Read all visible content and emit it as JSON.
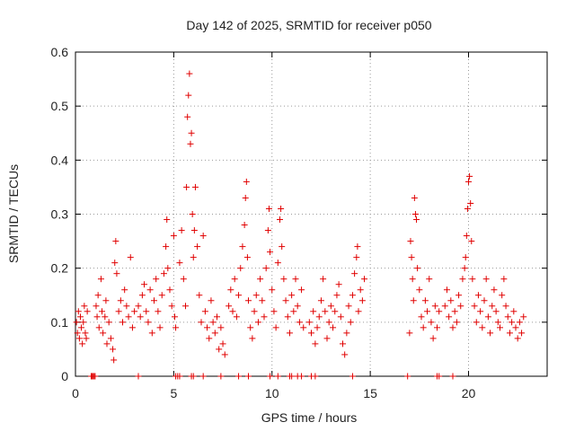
{
  "chart_data": {
    "type": "scatter",
    "title": "Day 142 of 2025, SRMTID for receiver p050",
    "xlabel": "GPS time / hours",
    "ylabel": "SRMTID / TECUs",
    "xlim": [
      0,
      24
    ],
    "ylim": [
      0,
      0.6
    ],
    "xticks": [
      0,
      5,
      10,
      15,
      20
    ],
    "yticks": [
      0,
      0.1,
      0.2,
      0.3,
      0.4,
      0.5,
      0.6
    ],
    "x_tick_labels": [
      "0",
      "5",
      "10",
      "15",
      "20"
    ],
    "y_tick_labels": [
      "0",
      "0.1",
      "0.2",
      "0.3",
      "0.4",
      "0.5",
      "0.6"
    ],
    "grid": true,
    "marker": "+",
    "color": "#e00000",
    "series": [
      {
        "name": "SRMTID",
        "points": [
          [
            0.05,
            0.1
          ],
          [
            0.1,
            0.08
          ],
          [
            0.15,
            0.12
          ],
          [
            0.2,
            0.07
          ],
          [
            0.25,
            0.11
          ],
          [
            0.3,
            0.09
          ],
          [
            0.35,
            0.06
          ],
          [
            0.4,
            0.1
          ],
          [
            0.45,
            0.13
          ],
          [
            0.5,
            0.08
          ],
          [
            0.55,
            0.07
          ],
          [
            0.6,
            0.12
          ],
          [
            1.05,
            0.13
          ],
          [
            1.1,
            0.11
          ],
          [
            1.15,
            0.15
          ],
          [
            1.2,
            0.09
          ],
          [
            1.3,
            0.18
          ],
          [
            1.35,
            0.12
          ],
          [
            1.4,
            0.08
          ],
          [
            1.5,
            0.11
          ],
          [
            1.55,
            0.14
          ],
          [
            1.6,
            0.06
          ],
          [
            1.7,
            0.1
          ],
          [
            1.8,
            0.07
          ],
          [
            1.9,
            0.05
          ],
          [
            1.95,
            0.03
          ],
          [
            2.0,
            0.21
          ],
          [
            2.05,
            0.25
          ],
          [
            2.1,
            0.19
          ],
          [
            2.2,
            0.12
          ],
          [
            2.3,
            0.14
          ],
          [
            2.4,
            0.1
          ],
          [
            2.5,
            0.16
          ],
          [
            2.6,
            0.13
          ],
          [
            2.7,
            0.11
          ],
          [
            2.8,
            0.22
          ],
          [
            2.9,
            0.09
          ],
          [
            3.0,
            0.12
          ],
          [
            3.2,
            0.13
          ],
          [
            3.3,
            0.11
          ],
          [
            3.4,
            0.15
          ],
          [
            3.5,
            0.17
          ],
          [
            3.6,
            0.12
          ],
          [
            3.7,
            0.1
          ],
          [
            3.8,
            0.16
          ],
          [
            3.9,
            0.08
          ],
          [
            4.0,
            0.14
          ],
          [
            4.1,
            0.18
          ],
          [
            4.2,
            0.12
          ],
          [
            4.3,
            0.09
          ],
          [
            4.4,
            0.15
          ],
          [
            4.5,
            0.19
          ],
          [
            4.6,
            0.24
          ],
          [
            4.65,
            0.29
          ],
          [
            4.7,
            0.2
          ],
          [
            4.8,
            0.16
          ],
          [
            4.9,
            0.13
          ],
          [
            5.0,
            0.26
          ],
          [
            5.05,
            0.11
          ],
          [
            5.1,
            0.09
          ],
          [
            5.3,
            0.21
          ],
          [
            5.4,
            0.27
          ],
          [
            5.5,
            0.18
          ],
          [
            5.6,
            0.13
          ],
          [
            5.65,
            0.35
          ],
          [
            5.7,
            0.48
          ],
          [
            5.75,
            0.52
          ],
          [
            5.8,
            0.56
          ],
          [
            5.85,
            0.43
          ],
          [
            5.9,
            0.45
          ],
          [
            5.95,
            0.3
          ],
          [
            6.0,
            0.22
          ],
          [
            6.05,
            0.27
          ],
          [
            6.1,
            0.35
          ],
          [
            6.2,
            0.24
          ],
          [
            6.3,
            0.15
          ],
          [
            6.4,
            0.1
          ],
          [
            6.5,
            0.26
          ],
          [
            6.6,
            0.12
          ],
          [
            6.7,
            0.09
          ],
          [
            6.8,
            0.07
          ],
          [
            6.9,
            0.14
          ],
          [
            7.0,
            0.1
          ],
          [
            7.1,
            0.08
          ],
          [
            7.2,
            0.11
          ],
          [
            7.3,
            0.05
          ],
          [
            7.4,
            0.09
          ],
          [
            7.5,
            0.06
          ],
          [
            7.6,
            0.04
          ],
          [
            7.8,
            0.13
          ],
          [
            7.9,
            0.16
          ],
          [
            8.0,
            0.12
          ],
          [
            8.1,
            0.18
          ],
          [
            8.2,
            0.11
          ],
          [
            8.3,
            0.15
          ],
          [
            8.4,
            0.2
          ],
          [
            8.5,
            0.24
          ],
          [
            8.6,
            0.28
          ],
          [
            8.65,
            0.33
          ],
          [
            8.7,
            0.36
          ],
          [
            8.75,
            0.22
          ],
          [
            8.8,
            0.14
          ],
          [
            8.9,
            0.09
          ],
          [
            9.0,
            0.07
          ],
          [
            9.1,
            0.12
          ],
          [
            9.2,
            0.15
          ],
          [
            9.3,
            0.1
          ],
          [
            9.4,
            0.18
          ],
          [
            9.5,
            0.14
          ],
          [
            9.6,
            0.11
          ],
          [
            9.7,
            0.2
          ],
          [
            9.8,
            0.27
          ],
          [
            9.85,
            0.31
          ],
          [
            9.9,
            0.23
          ],
          [
            10.0,
            0.16
          ],
          [
            10.1,
            0.12
          ],
          [
            10.2,
            0.09
          ],
          [
            10.3,
            0.21
          ],
          [
            10.4,
            0.29
          ],
          [
            10.45,
            0.31
          ],
          [
            10.5,
            0.24
          ],
          [
            10.6,
            0.18
          ],
          [
            10.7,
            0.14
          ],
          [
            10.8,
            0.11
          ],
          [
            10.9,
            0.08
          ],
          [
            11.0,
            0.15
          ],
          [
            11.1,
            0.12
          ],
          [
            11.2,
            0.18
          ],
          [
            11.3,
            0.13
          ],
          [
            11.4,
            0.1
          ],
          [
            11.5,
            0.16
          ],
          [
            11.6,
            0.09
          ],
          [
            11.9,
            0.1
          ],
          [
            12.0,
            0.08
          ],
          [
            12.1,
            0.12
          ],
          [
            12.2,
            0.06
          ],
          [
            12.3,
            0.09
          ],
          [
            12.4,
            0.11
          ],
          [
            12.5,
            0.14
          ],
          [
            12.6,
            0.18
          ],
          [
            12.7,
            0.12
          ],
          [
            12.8,
            0.07
          ],
          [
            12.9,
            0.1
          ],
          [
            13.0,
            0.13
          ],
          [
            13.1,
            0.09
          ],
          [
            13.2,
            0.12
          ],
          [
            13.3,
            0.15
          ],
          [
            13.4,
            0.17
          ],
          [
            13.5,
            0.11
          ],
          [
            13.6,
            0.06
          ],
          [
            13.7,
            0.04
          ],
          [
            13.8,
            0.08
          ],
          [
            13.9,
            0.13
          ],
          [
            14.0,
            0.1
          ],
          [
            14.1,
            0.15
          ],
          [
            14.2,
            0.19
          ],
          [
            14.3,
            0.22
          ],
          [
            14.35,
            0.24
          ],
          [
            14.4,
            0.12
          ],
          [
            14.5,
            0.16
          ],
          [
            14.6,
            0.14
          ],
          [
            14.7,
            0.18
          ],
          [
            17.0,
            0.08
          ],
          [
            17.05,
            0.25
          ],
          [
            17.1,
            0.22
          ],
          [
            17.15,
            0.18
          ],
          [
            17.2,
            0.14
          ],
          [
            17.25,
            0.33
          ],
          [
            17.3,
            0.3
          ],
          [
            17.35,
            0.29
          ],
          [
            17.4,
            0.2
          ],
          [
            17.5,
            0.16
          ],
          [
            17.6,
            0.11
          ],
          [
            17.7,
            0.09
          ],
          [
            17.8,
            0.14
          ],
          [
            17.9,
            0.12
          ],
          [
            18.0,
            0.18
          ],
          [
            18.1,
            0.1
          ],
          [
            18.2,
            0.07
          ],
          [
            18.3,
            0.13
          ],
          [
            18.4,
            0.09
          ],
          [
            18.5,
            0.12
          ],
          [
            18.8,
            0.13
          ],
          [
            18.9,
            0.16
          ],
          [
            19.0,
            0.11
          ],
          [
            19.1,
            0.14
          ],
          [
            19.2,
            0.09
          ],
          [
            19.3,
            0.12
          ],
          [
            19.4,
            0.1
          ],
          [
            19.5,
            0.15
          ],
          [
            19.6,
            0.13
          ],
          [
            19.7,
            0.18
          ],
          [
            19.8,
            0.2
          ],
          [
            19.85,
            0.22
          ],
          [
            19.9,
            0.26
          ],
          [
            19.95,
            0.31
          ],
          [
            20.0,
            0.36
          ],
          [
            20.05,
            0.37
          ],
          [
            20.1,
            0.32
          ],
          [
            20.15,
            0.25
          ],
          [
            20.2,
            0.18
          ],
          [
            20.3,
            0.13
          ],
          [
            20.4,
            0.1
          ],
          [
            20.5,
            0.15
          ],
          [
            20.6,
            0.12
          ],
          [
            20.7,
            0.09
          ],
          [
            20.8,
            0.14
          ],
          [
            20.9,
            0.18
          ],
          [
            21.0,
            0.11
          ],
          [
            21.1,
            0.08
          ],
          [
            21.2,
            0.13
          ],
          [
            21.3,
            0.16
          ],
          [
            21.4,
            0.12
          ],
          [
            21.5,
            0.1
          ],
          [
            21.6,
            0.09
          ],
          [
            21.7,
            0.15
          ],
          [
            21.8,
            0.18
          ],
          [
            21.9,
            0.13
          ],
          [
            22.0,
            0.11
          ],
          [
            22.1,
            0.08
          ],
          [
            22.2,
            0.1
          ],
          [
            22.3,
            0.12
          ],
          [
            22.4,
            0.09
          ],
          [
            22.5,
            0.07
          ],
          [
            22.6,
            0.1
          ],
          [
            22.7,
            0.08
          ],
          [
            22.8,
            0.11
          ]
        ]
      }
    ],
    "zero_points_x": [
      0.8,
      0.85,
      0.9,
      0.95,
      1.0,
      3.2,
      5.1,
      5.2,
      5.3,
      5.9,
      6.0,
      6.5,
      7.4,
      8.3,
      8.8,
      9.9,
      10.3,
      10.9,
      11.0,
      11.3,
      11.5,
      12.0,
      12.2,
      14.1,
      16.9,
      18.4,
      18.5,
      19.2
    ]
  }
}
